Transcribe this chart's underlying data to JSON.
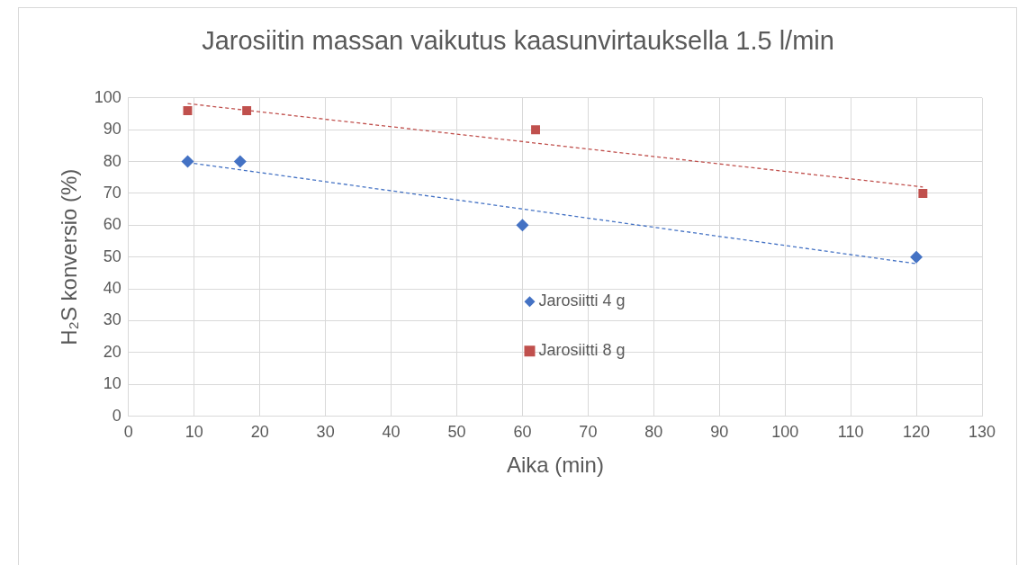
{
  "chart_data": {
    "type": "scatter",
    "title": "Jarosiitin massan vaikutus kaasunvirtauksella 1.5 l/min",
    "xlabel": "Aika (min)",
    "ylabel": "H₂S konversio (%)",
    "xlim": [
      0,
      130
    ],
    "xticks": [
      0,
      10,
      20,
      30,
      40,
      50,
      60,
      70,
      80,
      90,
      100,
      110,
      120,
      130
    ],
    "ylim": [
      0,
      100
    ],
    "yticks": [
      0,
      10,
      20,
      30,
      40,
      50,
      60,
      70,
      80,
      90,
      100
    ],
    "grid": true,
    "legend": "center",
    "series": [
      {
        "name": "Jarosiitti 4 g",
        "color": "#4472c4",
        "marker": "diamond",
        "x": [
          9,
          17,
          60,
          120
        ],
        "values": [
          80,
          80,
          60,
          50
        ]
      },
      {
        "name": "Jarosiitti 8 g",
        "color": "#c0504d",
        "marker": "square",
        "x": [
          9,
          18,
          62,
          121
        ],
        "values": [
          96,
          96,
          90,
          70
        ]
      },
      {
        "type": "line",
        "color": "#4472c4",
        "line_style": "dashed",
        "marker": "none",
        "x": [
          9,
          120
        ],
        "values": [
          79.7,
          47.9
        ]
      },
      {
        "type": "line",
        "color": "#c0504d",
        "line_style": "dashed",
        "marker": "none",
        "x": [
          9,
          121
        ],
        "values": [
          98.2,
          72.0
        ]
      }
    ]
  }
}
